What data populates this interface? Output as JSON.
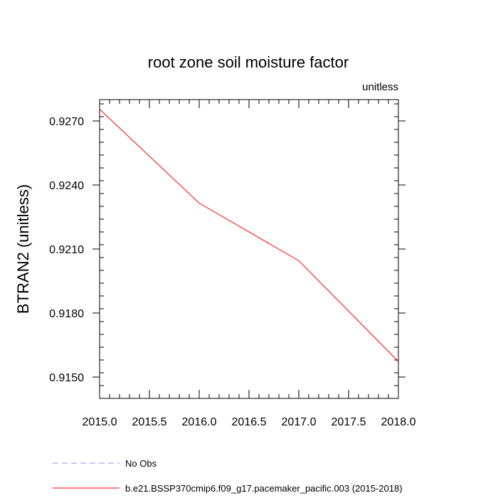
{
  "chart_data": {
    "type": "line",
    "title": "root zone soil moisture factor",
    "units_label": "unitless",
    "xlabel": "",
    "ylabel": "BTRAN2  (unitless)",
    "xlim": [
      2015.0,
      2018.0
    ],
    "ylim": [
      0.914,
      0.928
    ],
    "x_ticks": [
      "2015.0",
      "2015.5",
      "2016.0",
      "2016.5",
      "2017.0",
      "2017.5",
      "2018.0"
    ],
    "y_ticks": [
      "0.9150",
      "0.9180",
      "0.9210",
      "0.9240",
      "0.9270"
    ],
    "x_tick_values": [
      2015.0,
      2015.5,
      2016.0,
      2016.5,
      2017.0,
      2017.5,
      2018.0
    ],
    "y_tick_values": [
      0.915,
      0.918,
      0.921,
      0.924,
      0.927
    ],
    "series": [
      {
        "name": "b.e21.BSSP370cmip6.f09_g17.pacemaker_pacific.003 (2015-2018)",
        "color": "#ff0000",
        "style": "solid",
        "x": [
          2015.0,
          2016.0,
          2017.0,
          2018.0
        ],
        "y": [
          0.92755,
          0.92315,
          0.92045,
          0.91573
        ]
      }
    ],
    "legend": [
      {
        "label": "No Obs",
        "color": "#8c8cff",
        "style": "dashed"
      },
      {
        "label": "b.e21.BSSP370cmip6.f09_g17.pacemaker_pacific.003 (2015-2018)",
        "color": "#ff0000",
        "style": "solid"
      }
    ],
    "legend_placement": "bottom-left",
    "grid": false
  }
}
